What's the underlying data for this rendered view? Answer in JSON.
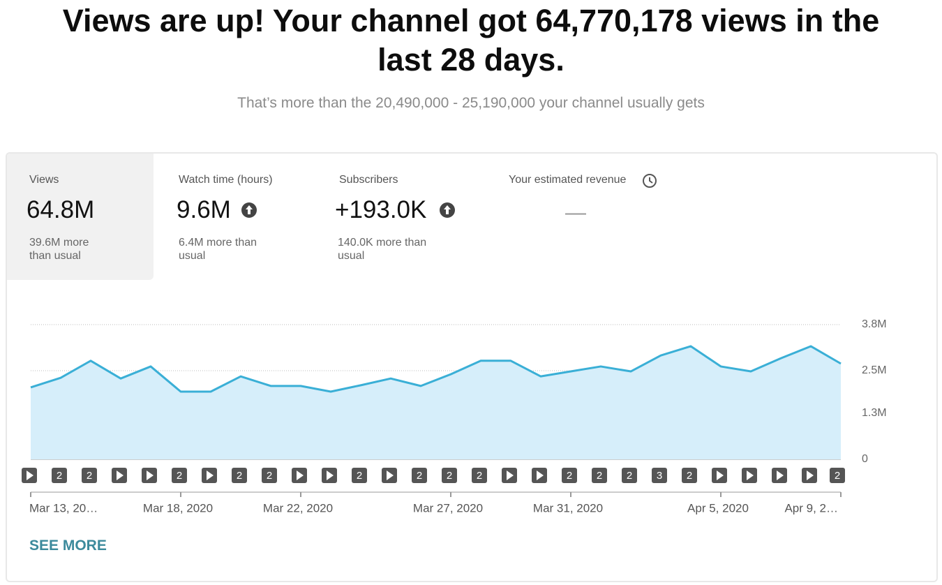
{
  "header": {
    "title": "Views are up! Your channel got 64,770,178 views in the last 28 days.",
    "subtitle": "That’s more than the 20,490,000 - 25,190,000 your channel usually gets"
  },
  "tabs": [
    {
      "label": "Views",
      "value": "64.8M",
      "note": "39.6M more than usual"
    },
    {
      "label": "Watch time (hours)",
      "value": "9.6M",
      "note": "6.4M more than usual"
    },
    {
      "label": "Subscribers",
      "value": "+193.0K",
      "note": "140.0K more than usual"
    },
    {
      "label": "Your estimated revenue",
      "value": "—"
    }
  ],
  "chart_data": {
    "type": "area",
    "categories": [
      "Mar 13, 20…",
      null,
      null,
      null,
      null,
      "Mar 18, 2020",
      null,
      null,
      null,
      "Mar 22, 2020",
      null,
      null,
      null,
      null,
      "Mar 27, 2020",
      null,
      null,
      null,
      "Mar 31, 2020",
      null,
      null,
      null,
      null,
      "Apr 5, 2020",
      null,
      null,
      null,
      "Apr 9, 2…"
    ],
    "values": [
      2.03,
      2.3,
      2.78,
      2.28,
      2.62,
      1.91,
      1.91,
      2.34,
      2.07,
      2.07,
      1.91,
      2.09,
      2.28,
      2.07,
      2.4,
      2.78,
      2.78,
      2.34,
      2.48,
      2.62,
      2.48,
      2.93,
      3.19,
      2.62,
      2.48,
      2.85,
      3.19,
      2.7
    ],
    "color": "#3aafd6",
    "fill": "#d6eefa",
    "markers": [
      null,
      "2",
      "2",
      null,
      null,
      "2",
      null,
      "2",
      "2",
      null,
      null,
      "2",
      null,
      "2",
      "2",
      "2",
      null,
      null,
      "2",
      "2",
      "2",
      "3",
      "2",
      null,
      null,
      null,
      null,
      "2"
    ],
    "ylim": [
      0,
      3.8
    ],
    "yticks": [
      {
        "value": 3.8,
        "label": "3.8M"
      },
      {
        "value": 2.5,
        "label": "2.5M"
      },
      {
        "value": 1.3,
        "label": "1.3M"
      },
      0
    ],
    "grid": true
  },
  "see_more": "SEE MORE"
}
